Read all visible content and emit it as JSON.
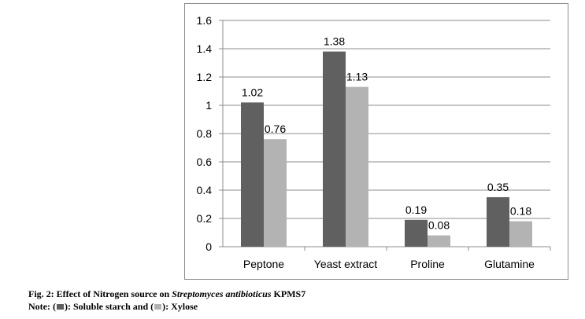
{
  "chart_data": {
    "type": "bar",
    "categories": [
      "Peptone",
      "Yeast extract",
      "Proline",
      "Glutamine"
    ],
    "series": [
      {
        "name": "Soluble starch",
        "values": [
          1.02,
          1.38,
          0.19,
          0.35
        ],
        "color": "#606060"
      },
      {
        "name": "Xylose",
        "values": [
          0.76,
          1.13,
          0.08,
          0.18
        ],
        "color": "#b3b3b3"
      }
    ],
    "data_labels": [
      [
        "1.02",
        "1.38",
        "0.19",
        "0.35"
      ],
      [
        "0.76",
        "1.13",
        "0.08",
        "0.18"
      ]
    ],
    "ylim": [
      0,
      1.6
    ],
    "yticks": [
      "0",
      "0.2",
      "0.4",
      "0.6",
      "0.8",
      "1",
      "1.2",
      "1.4",
      "1.6"
    ],
    "grid": true,
    "title": "",
    "xlabel": "",
    "ylabel": ""
  },
  "caption": {
    "line1_prefix": "Fig. 2: Effect of Nitrogen source on ",
    "line1_italic": "Streptomyces antibioticus",
    "line1_suffix": " KPMS7",
    "line2_note": "Note: (",
    "line2_mid1": "): Soluble starch and (",
    "line2_end": "): Xylose"
  }
}
